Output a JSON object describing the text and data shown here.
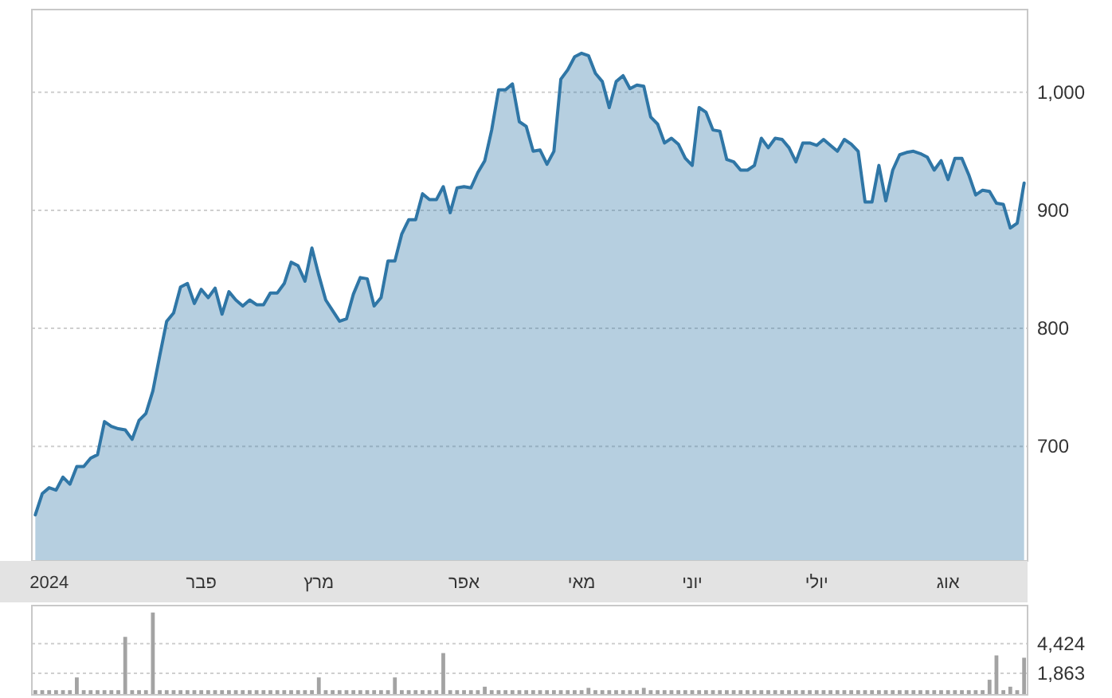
{
  "chart_data": [
    {
      "type": "area",
      "categories": [
        null,
        null,
        "2024",
        null,
        null,
        null,
        null,
        null,
        null,
        null,
        null,
        null,
        null,
        null,
        null,
        null,
        null,
        null,
        null,
        null,
        null,
        null,
        null,
        null,
        "פבר",
        null,
        null,
        null,
        null,
        null,
        null,
        null,
        null,
        null,
        null,
        null,
        null,
        null,
        null,
        null,
        null,
        "מרץ",
        null,
        null,
        null,
        null,
        null,
        null,
        null,
        null,
        null,
        null,
        null,
        null,
        null,
        null,
        null,
        null,
        null,
        null,
        null,
        null,
        "אפר",
        null,
        null,
        null,
        null,
        null,
        null,
        null,
        null,
        null,
        null,
        null,
        null,
        null,
        null,
        null,
        null,
        "מאי",
        null,
        null,
        null,
        null,
        null,
        null,
        null,
        null,
        null,
        null,
        null,
        null,
        null,
        null,
        null,
        "יוני",
        null,
        null,
        null,
        null,
        null,
        null,
        null,
        null,
        null,
        null,
        null,
        null,
        null,
        null,
        null,
        null,
        null,
        "יולי",
        null,
        null,
        null,
        null,
        null,
        null,
        null,
        null,
        null,
        null,
        null,
        null,
        null,
        null,
        null,
        null,
        null,
        null,
        "אוג",
        null,
        null,
        null,
        null,
        null,
        null,
        null,
        null,
        null,
        null,
        null
      ],
      "values": [
        642,
        660,
        665,
        663,
        674,
        668,
        683,
        683,
        690,
        693,
        721,
        717,
        715,
        714,
        706,
        722,
        728,
        747,
        777,
        806,
        813,
        835,
        838,
        821,
        833,
        826,
        834,
        812,
        831,
        824,
        819,
        824,
        820,
        820,
        830,
        830,
        838,
        856,
        853,
        840,
        868,
        845,
        824,
        815,
        806,
        808,
        829,
        843,
        842,
        819,
        826,
        857,
        857,
        880,
        892,
        892,
        914,
        909,
        909,
        920,
        898,
        919,
        920,
        919,
        932,
        942,
        968,
        1002,
        1002,
        1007,
        975,
        971,
        950,
        951,
        939,
        950,
        1011,
        1019,
        1030,
        1033,
        1031,
        1016,
        1009,
        987,
        1009,
        1014,
        1003,
        1006,
        1005,
        979,
        973,
        957,
        961,
        956,
        944,
        938,
        987,
        983,
        968,
        967,
        943,
        941,
        934,
        934,
        938,
        961,
        953,
        961,
        960,
        953,
        941,
        957,
        957,
        955,
        960,
        955,
        950,
        960,
        956,
        950,
        907,
        907,
        938,
        908,
        934,
        947,
        949,
        950,
        948,
        945,
        934,
        942,
        926,
        944,
        944,
        930,
        913,
        917,
        916,
        906,
        905,
        885,
        889,
        923
      ],
      "color": "#2f76a6",
      "ylim": [
        603,
        1070
      ],
      "yticks": [
        700,
        800,
        900,
        {
          "value": 1000,
          "label": "1,000"
        }
      ],
      "grid": "y"
    },
    {
      "type": "bar",
      "categories": [
        null,
        null,
        null,
        null,
        null,
        null,
        null,
        null,
        null,
        null,
        null,
        null,
        null,
        null,
        null,
        null,
        null,
        null,
        null,
        null,
        null,
        null,
        null,
        null,
        null,
        null,
        null,
        null,
        null,
        null,
        null,
        null,
        null,
        null,
        null,
        null,
        null,
        null,
        null,
        null,
        null,
        null,
        null,
        null,
        null,
        null,
        null,
        null,
        null,
        null,
        null,
        null,
        null,
        null,
        null,
        null,
        null,
        null,
        null,
        null,
        null,
        null,
        null,
        null,
        null,
        null,
        null,
        null,
        null,
        null,
        null,
        null,
        null,
        null,
        null,
        null,
        null,
        null,
        null,
        null,
        null,
        null,
        null,
        null,
        null,
        null,
        null,
        null,
        null,
        null,
        null,
        null,
        null,
        null,
        null,
        null,
        null,
        null,
        null,
        null,
        null,
        null,
        null,
        null,
        null,
        null,
        null,
        null,
        null,
        null,
        null,
        null,
        null,
        null,
        null,
        null,
        null,
        null,
        null,
        null,
        null,
        null,
        null,
        null,
        null,
        null,
        null,
        null,
        null,
        null,
        null,
        null,
        null,
        null,
        null,
        null,
        null,
        null,
        null,
        null,
        null,
        null,
        null,
        null
      ],
      "values": [
        400,
        400,
        400,
        400,
        400,
        400,
        1500,
        400,
        400,
        400,
        400,
        400,
        400,
        5000,
        400,
        400,
        400,
        7100,
        400,
        400,
        400,
        400,
        400,
        400,
        400,
        400,
        400,
        400,
        400,
        400,
        400,
        400,
        400,
        400,
        400,
        400,
        400,
        400,
        400,
        400,
        400,
        1500,
        400,
        400,
        400,
        400,
        400,
        400,
        400,
        400,
        400,
        400,
        1500,
        400,
        400,
        400,
        400,
        400,
        400,
        3600,
        400,
        400,
        400,
        400,
        400,
        700,
        400,
        400,
        400,
        400,
        400,
        400,
        400,
        400,
        400,
        400,
        400,
        400,
        400,
        400,
        600,
        400,
        400,
        400,
        400,
        400,
        400,
        400,
        600,
        400,
        400,
        400,
        400,
        400,
        400,
        400,
        400,
        400,
        400,
        400,
        400,
        400,
        400,
        400,
        400,
        400,
        400,
        400,
        400,
        400,
        400,
        400,
        400,
        400,
        400,
        400,
        400,
        400,
        400,
        400,
        400,
        400,
        400,
        400,
        400,
        400,
        400,
        400,
        400,
        400,
        400,
        400,
        400,
        400,
        400,
        400,
        400,
        400,
        1300,
        3400,
        400,
        700,
        400,
        3200
      ],
      "color": "#a3a3a3",
      "ylim": [
        0,
        7700
      ],
      "yticks": [
        {
          "value": 1863,
          "label": "1,863"
        },
        {
          "value": 4424,
          "label": "4,424"
        }
      ],
      "grid": "y",
      "tick_labels": "y"
    }
  ]
}
